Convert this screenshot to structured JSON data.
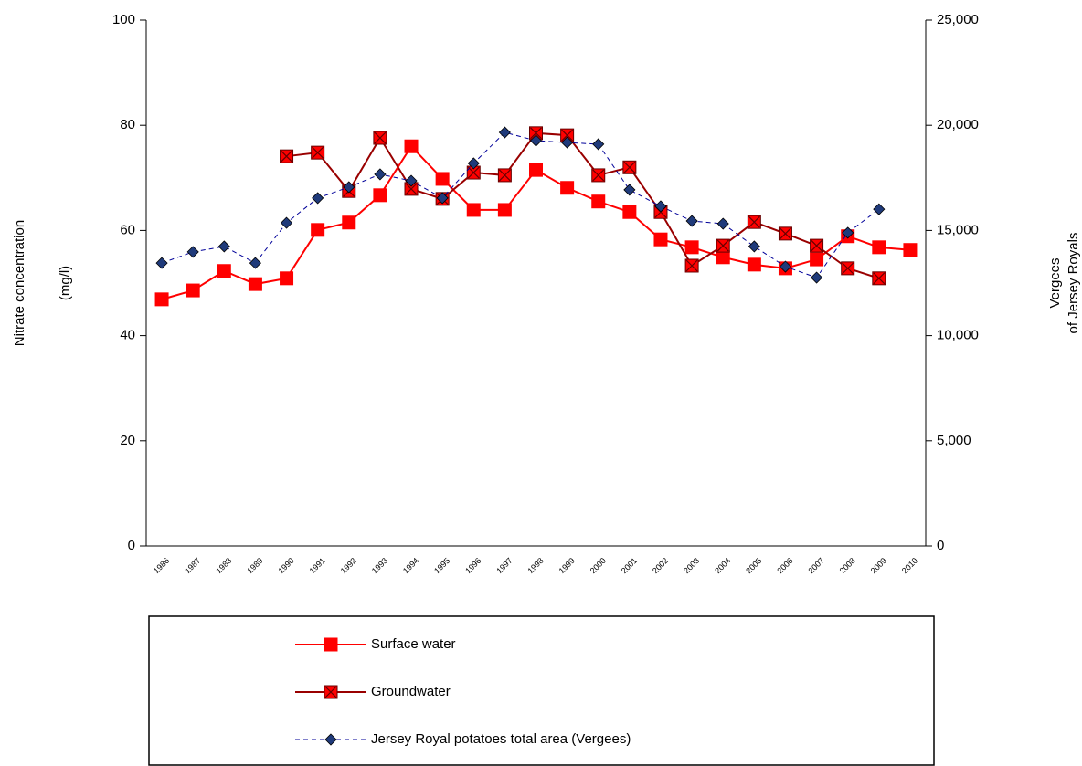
{
  "chart_data": {
    "type": "line",
    "ylabel": [
      "Nitrate concentration",
      "(mg/l)"
    ],
    "y2label": [
      "Vergees",
      "of Jersey Royals"
    ],
    "categories": [
      "1986",
      "1987",
      "1988",
      "1989",
      "1990",
      "1991",
      "1992",
      "1993",
      "1994",
      "1995",
      "1996",
      "1997",
      "1998",
      "1999",
      "2000",
      "2001",
      "2002",
      "2003",
      "2004",
      "2005",
      "2006",
      "2007",
      "2008",
      "2009",
      "2010"
    ],
    "ylim": [
      0,
      100
    ],
    "yticks": [
      0,
      20,
      40,
      60,
      80,
      100
    ],
    "y2lim": [
      0,
      25000
    ],
    "y2ticks": [
      0,
      {
        "value": 5000,
        "label": "5,000"
      },
      {
        "value": 10000,
        "label": "10,000"
      },
      {
        "value": 15000,
        "label": "15,000"
      },
      {
        "value": 20000,
        "label": "20,000"
      },
      {
        "value": 25000,
        "label": "25,000"
      }
    ],
    "legend": "bottom",
    "series": [
      {
        "name": "Surface water",
        "color": "#ff0000",
        "marker": "square",
        "dash": false,
        "values": [
          46.9,
          48.6,
          52.3,
          49.8,
          50.9,
          60.1,
          61.5,
          66.7,
          76.0,
          69.8,
          63.9,
          63.9,
          71.5,
          68.1,
          65.5,
          63.5,
          58.3,
          56.8,
          54.9,
          53.5,
          52.8,
          54.5,
          58.9,
          56.8,
          56.3
        ]
      },
      {
        "name": "Groundwater",
        "color": "#990000",
        "marker": "square-x",
        "dash": false,
        "values": [
          null,
          null,
          null,
          null,
          74.1,
          74.8,
          67.5,
          77.6,
          67.9,
          66.0,
          71.0,
          70.5,
          78.5,
          78.1,
          70.5,
          72.0,
          63.5,
          53.3,
          57.1,
          61.6,
          59.4,
          57.1,
          52.8,
          50.9,
          null
        ]
      },
      {
        "name": "Jersey Royal potatoes total area (Vergees)",
        "color": "#000099",
        "marker": "diamond",
        "dash": true,
        "axis": "y2",
        "values": [
          13450,
          13980,
          14240,
          13450,
          15360,
          16540,
          17060,
          17670,
          17360,
          16540,
          18190,
          19660,
          19270,
          19180,
          19100,
          16930,
          16150,
          15450,
          15320,
          14240,
          13280,
          12760,
          14890,
          16010,
          null
        ]
      }
    ]
  }
}
